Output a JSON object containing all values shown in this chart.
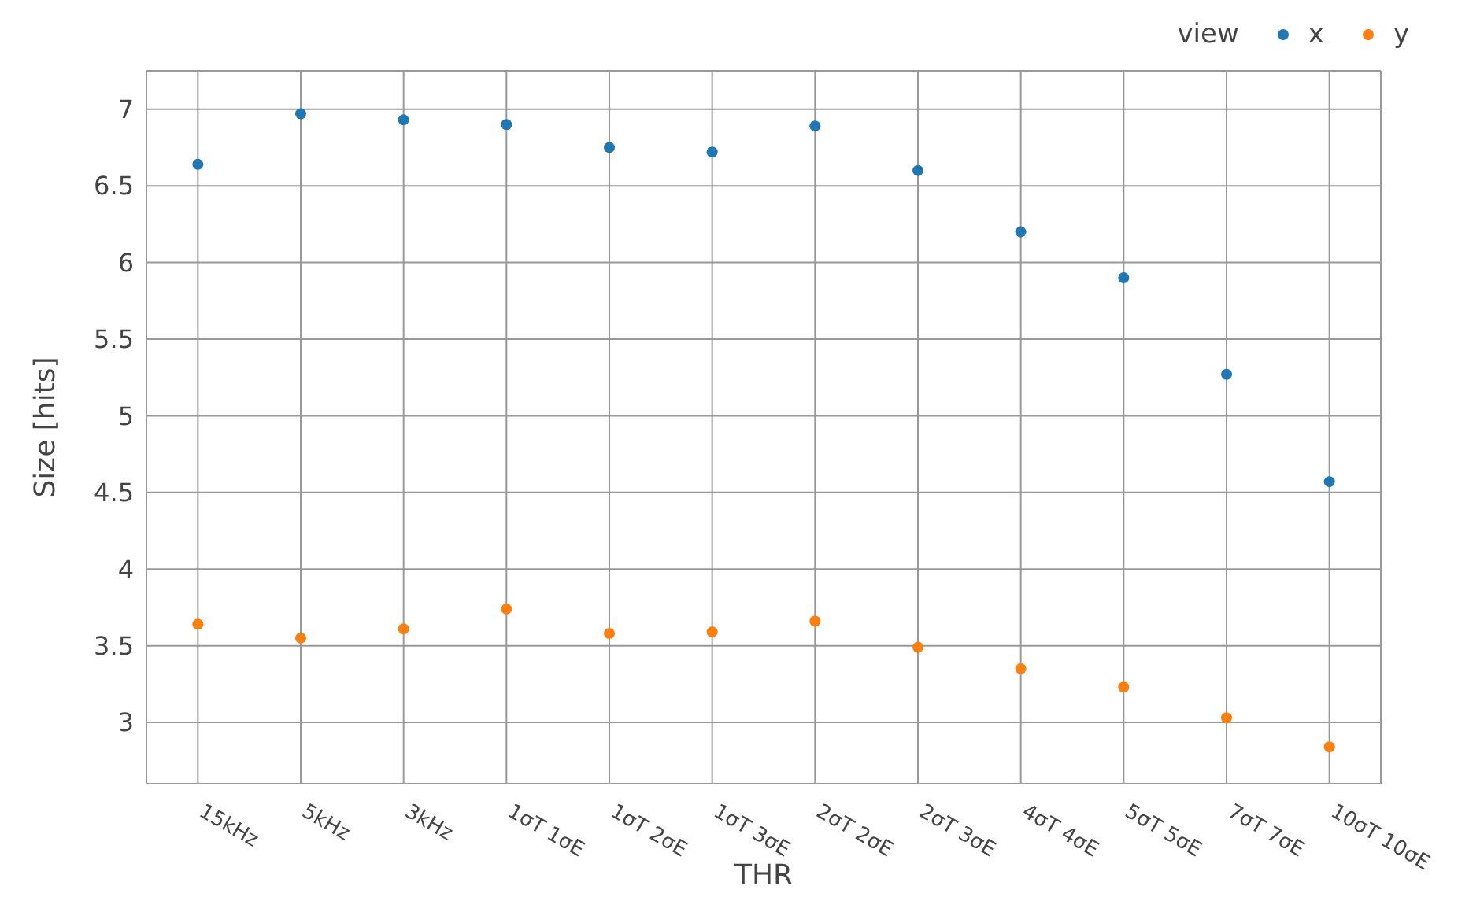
{
  "chart_data": {
    "type": "scatter",
    "xlabel": "THR",
    "ylabel": "Size [hits]",
    "legend_title": "view",
    "categories": [
      "15kHz",
      "5kHz",
      "3kHz",
      "1σT 1σE",
      "1σT 2σE",
      "1σT 3σE",
      "2σT 2σE",
      "2σT 3σE",
      "4σT 4σE",
      "5σT 5σE",
      "7σT 7σE",
      "10σT 10σE"
    ],
    "series": [
      {
        "name": "x",
        "color": "#1f77b4",
        "values": [
          6.64,
          6.97,
          6.93,
          6.9,
          6.75,
          6.72,
          6.89,
          6.6,
          6.2,
          5.9,
          5.27,
          4.57
        ]
      },
      {
        "name": "y",
        "color": "#ff7f0e",
        "values": [
          3.64,
          3.55,
          3.61,
          3.74,
          3.58,
          3.59,
          3.66,
          3.49,
          3.35,
          3.23,
          3.03,
          2.84
        ]
      }
    ],
    "ylim": [
      2.6,
      7.25
    ],
    "yticks": [
      3,
      3.5,
      4,
      4.5,
      5,
      5.5,
      6,
      6.5,
      7
    ],
    "grid": true,
    "legend": "top right",
    "marker": "circle"
  }
}
